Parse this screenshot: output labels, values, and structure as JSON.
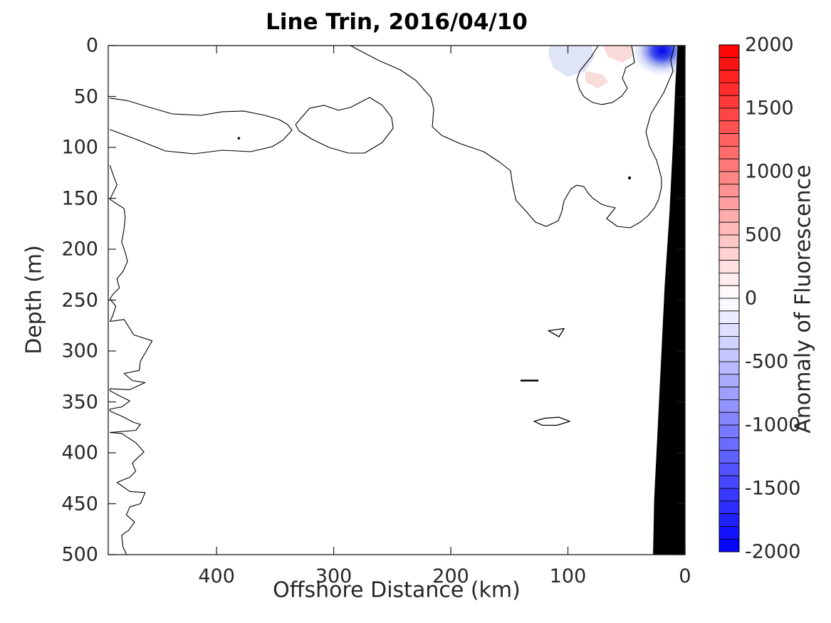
{
  "chart_data": {
    "type": "contour",
    "title": "Line Trin, 2016/04/10",
    "xlabel": "Offshore Distance (km)",
    "ylabel": "Depth (m)",
    "x_ticks": [
      400,
      300,
      200,
      100,
      0
    ],
    "y_ticks": [
      0,
      50,
      100,
      150,
      200,
      250,
      300,
      350,
      400,
      450,
      500
    ],
    "x_range_km": [
      492.5,
      0
    ],
    "x_axis_reversed": true,
    "y_range_m": [
      0,
      500
    ],
    "y_direction": "down",
    "grid": false,
    "contour_level": 0,
    "contour_color": "#000000",
    "axes_color": "#1a1a1a",
    "tick_label_color": "#262626",
    "colorbar": {
      "label": "Anomaly of Fluorescence",
      "min": -2000,
      "max": 2000,
      "ticks": [
        2000,
        1500,
        1000,
        500,
        0,
        -500,
        -1000,
        -1500,
        -2000
      ],
      "n_cells": 40,
      "colormap": "red-white-blue",
      "top_color": "#ff0000",
      "mid_color": "#ffffff",
      "bottom_color": "#0000ff"
    },
    "land_mask": {
      "color": "#000000",
      "points": [
        [
          6,
          0
        ],
        [
          0,
          0
        ],
        [
          0,
          500
        ],
        [
          27,
          500
        ],
        [
          26,
          445
        ],
        [
          23,
          375
        ],
        [
          20,
          305
        ],
        [
          17,
          235
        ],
        [
          13,
          165
        ],
        [
          10,
          95
        ],
        [
          8,
          39
        ]
      ]
    },
    "shaded_patches": [
      {
        "name": "negative-anomaly-halo-offshore",
        "color": "#dfe4f6",
        "points": [
          [
            115.5,
            0
          ],
          [
            80.2,
            0
          ],
          [
            77.2,
            11.2
          ],
          [
            85.1,
            25.2
          ],
          [
            100.3,
            30.8
          ],
          [
            112.5,
            21.7
          ],
          [
            116.7,
            9.8
          ]
        ]
      },
      {
        "name": "positive-anomaly-surface",
        "color": "#f9d9d9",
        "points": [
          [
            69.9,
            0
          ],
          [
            45.6,
            0
          ],
          [
            43.8,
            9.8
          ],
          [
            53.5,
            16.8
          ],
          [
            65.7,
            11.2
          ]
        ]
      },
      {
        "name": "positive-anomaly-subsurface",
        "color": "#f8dbdb",
        "points": [
          [
            85.1,
            25.2
          ],
          [
            69.9,
            28.7
          ],
          [
            65.7,
            35.7
          ],
          [
            74.2,
            42
          ],
          [
            85.1,
            35.7
          ]
        ]
      }
    ],
    "negative_anomaly_core": {
      "cx_km": 19.5,
      "cy_m": 5,
      "rx_km": 27,
      "ry_m": 26,
      "core_color": "#0505eb"
    },
    "contours": [
      {
        "name": "zero-contour-main-nearshore",
        "closed": false,
        "width": 1.1,
        "points": [
          [
            285.7,
            0
          ],
          [
            276.6,
            5.6
          ],
          [
            261.4,
            14.7
          ],
          [
            243.2,
            23.8
          ],
          [
            229.8,
            34.3
          ],
          [
            217,
            51
          ],
          [
            214.6,
            62.2
          ],
          [
            215.8,
            79.7
          ],
          [
            207.9,
            88.1
          ],
          [
            191.5,
            96.5
          ],
          [
            172,
            104.2
          ],
          [
            158.1,
            114.7
          ],
          [
            148.9,
            123.1
          ],
          [
            147.7,
            133.6
          ],
          [
            145.9,
            144.1
          ],
          [
            144.1,
            152.4
          ],
          [
            136.8,
            161.5
          ],
          [
            127.7,
            173.4
          ],
          [
            118.5,
            177.6
          ],
          [
            108.2,
            172
          ],
          [
            105.2,
            162.9
          ],
          [
            103.3,
            152.4
          ],
          [
            97.3,
            140.6
          ],
          [
            92.4,
            137.1
          ],
          [
            86.3,
            138.5
          ],
          [
            83.3,
            144.1
          ],
          [
            79,
            149.7
          ],
          [
            71.1,
            156
          ],
          [
            65,
            158
          ],
          [
            59.6,
            159.4
          ],
          [
            66.9,
            169.9
          ],
          [
            57.8,
            177.6
          ],
          [
            46.8,
            179
          ],
          [
            38.3,
            173.4
          ],
          [
            31.6,
            167.1
          ],
          [
            26.1,
            159.4
          ],
          [
            22.5,
            151
          ],
          [
            20.1,
            139.2
          ],
          [
            20.1,
            130.1
          ],
          [
            24.3,
            112.6
          ],
          [
            30.4,
            98.6
          ],
          [
            33.4,
            84.6
          ],
          [
            29.2,
            67.1
          ],
          [
            18.2,
            46.2
          ],
          [
            10.3,
            25.2
          ],
          [
            12.2,
            14.7
          ],
          [
            9.1,
            0
          ]
        ]
      },
      {
        "name": "zero-contour-offshore-lobe",
        "closed": false,
        "width": 1.1,
        "points": [
          [
            491,
            51.7
          ],
          [
            477.2,
            53.8
          ],
          [
            459,
            60.1
          ],
          [
            437.7,
            67.1
          ],
          [
            413.4,
            68.5
          ],
          [
            395.1,
            65
          ],
          [
            376.9,
            64.3
          ],
          [
            358.7,
            68.5
          ],
          [
            346.5,
            72.7
          ],
          [
            339.2,
            77.6
          ],
          [
            335.6,
            83.2
          ],
          [
            343.5,
            93
          ],
          [
            352.6,
            99.3
          ],
          [
            370.8,
            104.2
          ],
          [
            395.1,
            102.8
          ],
          [
            419.5,
            106.3
          ],
          [
            443.8,
            103.5
          ],
          [
            468.1,
            92.3
          ],
          [
            491,
            82.5
          ]
        ]
      },
      {
        "name": "zero-contour-mid-blob",
        "closed": true,
        "width": 1.1,
        "points": [
          [
            320.4,
            61.5
          ],
          [
            308.2,
            58.7
          ],
          [
            296,
            63.6
          ],
          [
            285.7,
            60.8
          ],
          [
            269.3,
            51
          ],
          [
            258.4,
            58.7
          ],
          [
            250.5,
            70.6
          ],
          [
            249.2,
            81.1
          ],
          [
            258.4,
            95.1
          ],
          [
            273.6,
            105.6
          ],
          [
            287.5,
            105.6
          ],
          [
            304,
            100
          ],
          [
            319.1,
            91.6
          ],
          [
            329.5,
            83.9
          ],
          [
            332.5,
            77.6
          ],
          [
            326.4,
            69.2
          ]
        ]
      },
      {
        "name": "zero-contour-surface-pocket",
        "closed": false,
        "width": 1.1,
        "points": [
          [
            74.2,
            0
          ],
          [
            80.2,
            11.2
          ],
          [
            90,
            25.2
          ],
          [
            92.4,
            33.6
          ],
          [
            90,
            43.4
          ],
          [
            86.3,
            50.3
          ],
          [
            79,
            55.9
          ],
          [
            71.1,
            58
          ],
          [
            62,
            55.9
          ],
          [
            54.1,
            49.7
          ],
          [
            49.2,
            42
          ],
          [
            53.5,
            32.2
          ],
          [
            50.5,
            21.7
          ],
          [
            43.2,
            16.8
          ],
          [
            44.4,
            7.7
          ],
          [
            45.6,
            0
          ]
        ]
      },
      {
        "name": "zero-contour-far-offshore-wiggle",
        "closed": false,
        "width": 1.1,
        "points": [
          [
            491,
            118
          ],
          [
            488,
            128
          ],
          [
            485,
            137
          ],
          [
            489,
            146
          ],
          [
            491,
            151
          ],
          [
            486,
            155
          ],
          [
            479,
            160
          ],
          [
            478,
            169
          ],
          [
            479,
            180
          ],
          [
            481,
            193
          ],
          [
            478,
            203
          ],
          [
            476,
            212
          ],
          [
            480,
            222
          ],
          [
            485,
            229
          ],
          [
            483,
            238
          ],
          [
            489,
            245
          ],
          [
            491,
            249
          ],
          [
            486,
            256
          ],
          [
            489,
            266
          ],
          [
            491,
            271
          ],
          [
            479,
            269
          ],
          [
            474,
            278
          ],
          [
            471,
            284
          ],
          [
            455,
            290
          ],
          [
            460,
            300
          ],
          [
            465,
            310
          ],
          [
            466,
            319
          ],
          [
            479,
            322
          ],
          [
            472,
            329
          ],
          [
            461,
            331
          ],
          [
            474,
            338
          ],
          [
            491,
            337
          ],
          [
            491,
            339
          ],
          [
            483,
            344
          ],
          [
            474,
            349
          ],
          [
            481,
            355
          ],
          [
            491,
            357
          ],
          [
            491,
            359
          ],
          [
            481,
            364
          ],
          [
            471,
            370
          ],
          [
            465,
            372
          ],
          [
            469,
            378
          ],
          [
            491,
            380
          ],
          [
            481,
            381
          ],
          [
            469,
            390
          ],
          [
            462,
            399
          ],
          [
            472,
            410
          ],
          [
            469,
            418
          ],
          [
            474,
            424
          ],
          [
            485,
            429
          ],
          [
            474,
            438
          ],
          [
            461,
            439
          ],
          [
            465,
            450
          ],
          [
            474,
            453
          ],
          [
            477,
            461
          ],
          [
            470,
            468
          ],
          [
            475,
            476
          ],
          [
            481,
            481
          ],
          [
            480,
            492
          ],
          [
            477,
            500
          ]
        ]
      },
      {
        "name": "zero-contour-small-triangle",
        "closed": true,
        "width": 1.3,
        "points": [
          [
            116.7,
            280
          ],
          [
            103.3,
            278
          ],
          [
            107.6,
            286
          ]
        ]
      },
      {
        "name": "zero-contour-small-dash",
        "closed": false,
        "width": 2.6,
        "points": [
          [
            139.8,
            329
          ],
          [
            125.8,
            329
          ]
        ]
      },
      {
        "name": "zero-contour-small-lens",
        "closed": true,
        "width": 1.3,
        "points": [
          [
            128.9,
            369
          ],
          [
            119.8,
            366
          ],
          [
            107.6,
            365
          ],
          [
            98.5,
            369
          ],
          [
            109.4,
            373
          ],
          [
            121.6,
            373
          ]
        ]
      }
    ],
    "contour_dots": [
      {
        "name": "tiny-contour-dot-offshore",
        "km": 381,
        "m": 91,
        "r": 1.8
      },
      {
        "name": "tiny-contour-dot-nearshore",
        "km": 47.4,
        "m": 130,
        "r": 2.1
      }
    ]
  }
}
